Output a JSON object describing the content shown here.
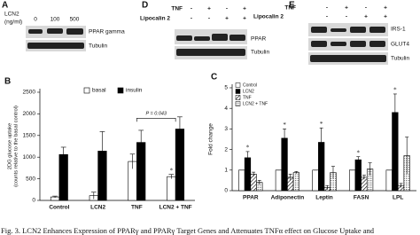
{
  "panels": {
    "A": {
      "letter": "A",
      "treatment_label": "LCN2",
      "unit": "(ng/ml)",
      "doses": [
        0,
        100,
        500
      ],
      "bands": [
        "PPAR gamma",
        "Tubulin"
      ]
    },
    "D": {
      "letter": "D",
      "treatments": [
        {
          "label": "TNF",
          "signs": [
            "-",
            "+",
            "-",
            "+"
          ]
        },
        {
          "label": "Lipocalin 2",
          "signs": [
            "-",
            "-",
            "+",
            "+"
          ]
        }
      ],
      "bands": [
        "PPAR",
        "Tubulin"
      ]
    },
    "E": {
      "letter": "E",
      "treatments": [
        {
          "label": "TNF",
          "signs": [
            "-",
            "+",
            "-",
            "+"
          ]
        },
        {
          "label": "Lipocalin 2",
          "signs": [
            "-",
            "-",
            "+",
            "+"
          ]
        }
      ],
      "bands": [
        "IRS-1",
        "GLUT4",
        "Tubulin"
      ]
    }
  },
  "chart_data": [
    {
      "type": "bar",
      "panel": "B",
      "ylabel": [
        "2DG glucose uptake",
        "(counts relative to the basal control)"
      ],
      "categories": [
        "Control",
        "LCN2",
        "TNF",
        "LCN2 + TNF"
      ],
      "series": [
        {
          "name": "basal",
          "color": "#ffffff",
          "values": [
            80,
            110,
            900,
            550
          ],
          "errors": [
            20,
            80,
            170,
            50
          ]
        },
        {
          "name": "insulin",
          "color": "#000000",
          "values": [
            1060,
            1140,
            1340,
            1650
          ],
          "errors": [
            170,
            450,
            280,
            280
          ]
        }
      ],
      "ylim": [
        0,
        2500
      ],
      "yticks": [
        0,
        500,
        1000,
        1500,
        2000,
        2500
      ],
      "legend": "top",
      "annotations": [
        "P = 0.043",
        "*"
      ]
    },
    {
      "type": "bar",
      "panel": "C",
      "ylabel": [
        "Fold change"
      ],
      "categories": [
        "PPAR",
        "Adiponectin",
        "Leptin",
        "FASN",
        "LPL"
      ],
      "series": [
        {
          "name": "Control",
          "color": "#ffffff",
          "values": [
            1,
            1,
            1,
            1,
            1
          ],
          "errors": [
            0,
            0,
            0,
            0,
            0
          ]
        },
        {
          "name": "LCN2",
          "color": "#000000",
          "values": [
            1.6,
            2.55,
            2.35,
            1.5,
            3.8
          ],
          "errors": [
            0.3,
            0.45,
            0.7,
            0.15,
            0.9
          ]
        },
        {
          "name": "TNF",
          "color": "#000000",
          "pattern": "hatch",
          "values": [
            0.8,
            0.65,
            0.15,
            0.65,
            0.25
          ],
          "errors": [
            0.1,
            0.15,
            0.1,
            0.1,
            0.1
          ]
        },
        {
          "name": "LCN2 + TNF",
          "color": "#000000",
          "pattern": "dots",
          "values": [
            0.4,
            0.88,
            0.88,
            1.05,
            1.7
          ],
          "errors": [
            0.1,
            0.05,
            0.3,
            0.3,
            0.9
          ]
        }
      ],
      "ylim": [
        0,
        5
      ],
      "yticks": [
        0,
        1,
        2,
        3,
        4,
        5
      ],
      "legend": "top-left",
      "markers": [
        "*",
        "*",
        "*",
        "*",
        "*"
      ]
    }
  ],
  "caption": "Fig. 3. LCN2 Enhances Expression of PPARγ and PPARγ Target Genes and Attenuates TNFα effect on Glucose Uptake and"
}
